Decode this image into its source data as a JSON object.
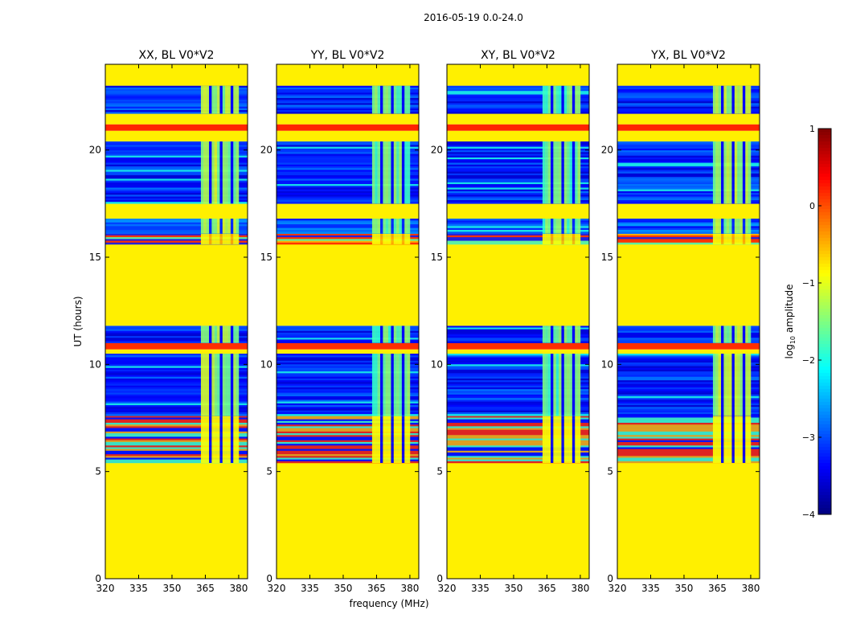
{
  "figure": {
    "suptitle": "2016-05-19 0.0-24.0",
    "shared_xlabel": "frequency (MHz)",
    "shared_ylabel": "UT (hours)"
  },
  "chart_data": {
    "type": "heatmap",
    "panels": [
      {
        "title": "XX, BL V0*V2",
        "pol": "XX",
        "hot_band": [
          363,
          380
        ]
      },
      {
        "title": "YY, BL V0*V2",
        "pol": "YY",
        "hot_band": [
          363,
          380
        ]
      },
      {
        "title": "XY, BL V0*V2",
        "pol": "XY",
        "hot_band": [
          363,
          380
        ]
      },
      {
        "title": "YX, BL V0*V2",
        "pol": "YX",
        "hot_band": [
          363,
          380
        ]
      }
    ],
    "x": {
      "label": "frequency (MHz)",
      "range": [
        320,
        384
      ],
      "ticks": [
        320,
        335,
        350,
        365,
        380
      ]
    },
    "y": {
      "label": "UT (hours)",
      "range": [
        0,
        24
      ],
      "ticks": [
        0,
        5,
        10,
        15,
        20
      ]
    },
    "colorbar": {
      "label": "log10 amplitude",
      "label_prefix": "log",
      "label_sub": "10",
      "label_suffix": " amplitude",
      "range": [
        -4,
        1
      ],
      "ticks": [
        "1",
        "0",
        "−1",
        "−2",
        "−3",
        "−4"
      ],
      "tick_values": [
        1,
        0,
        -1,
        -2,
        -3,
        -4
      ]
    },
    "ut_segments": [
      {
        "from": 0.0,
        "to": 5.4,
        "kind": "flag",
        "value": -0.8
      },
      {
        "from": 5.4,
        "to": 7.6,
        "kind": "striped",
        "value": -3.2
      },
      {
        "from": 7.6,
        "to": 10.5,
        "kind": "noise",
        "value": -3.2
      },
      {
        "from": 10.5,
        "to": 10.7,
        "kind": "flag",
        "value": -0.8
      },
      {
        "from": 10.7,
        "to": 11.0,
        "kind": "flag",
        "value": 0.15
      },
      {
        "from": 11.0,
        "to": 11.8,
        "kind": "noise",
        "value": -3.2
      },
      {
        "from": 11.8,
        "to": 15.6,
        "kind": "flag",
        "value": -0.8
      },
      {
        "from": 15.6,
        "to": 16.1,
        "kind": "striped",
        "value": -0.3
      },
      {
        "from": 16.1,
        "to": 16.8,
        "kind": "noise",
        "value": -3.0
      },
      {
        "from": 16.8,
        "to": 17.5,
        "kind": "flag",
        "value": -0.8
      },
      {
        "from": 17.5,
        "to": 20.4,
        "kind": "noise",
        "value": -3.2
      },
      {
        "from": 20.4,
        "to": 20.9,
        "kind": "flag",
        "value": -0.8
      },
      {
        "from": 20.9,
        "to": 21.2,
        "kind": "flag",
        "value": 0.2
      },
      {
        "from": 21.2,
        "to": 21.7,
        "kind": "flag",
        "value": -0.8
      },
      {
        "from": 21.7,
        "to": 23.0,
        "kind": "noise",
        "value": -3.2
      },
      {
        "from": 23.0,
        "to": 24.0,
        "kind": "flag",
        "value": -0.8
      }
    ]
  },
  "colors": {
    "flag": "#99ff55",
    "noise": "#1040ff",
    "band": "#ffee22",
    "red": "#ff3311",
    "orange": "#ff7711"
  }
}
